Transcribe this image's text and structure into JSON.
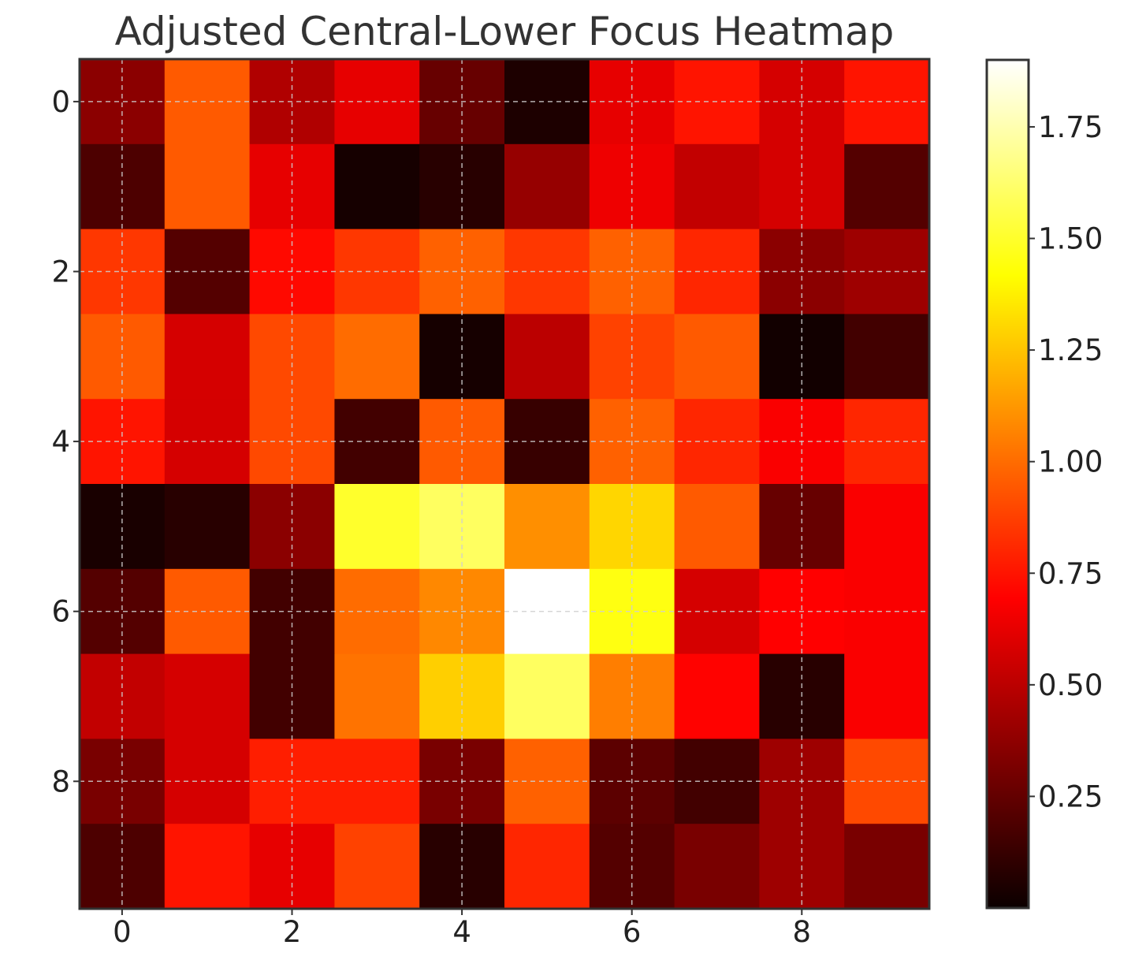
{
  "chart_data": {
    "type": "heatmap",
    "title": "Adjusted Central-Lower Focus Heatmap",
    "colormap": "hot",
    "rows": 10,
    "cols": 10,
    "x_ticks": [
      0,
      2,
      4,
      6,
      8
    ],
    "y_ticks": [
      0,
      2,
      4,
      6,
      8
    ],
    "grid": true,
    "colorbar": {
      "min": 0.0,
      "max": 1.9,
      "ticks": [
        0.25,
        0.5,
        0.75,
        1.0,
        1.25,
        1.5,
        1.75
      ],
      "tick_labels": [
        "0.25",
        "0.50",
        "0.75",
        "1.00",
        "1.25",
        "1.50",
        "1.75"
      ]
    },
    "values": [
      [
        0.35,
        0.95,
        0.45,
        0.6,
        0.25,
        0.05,
        0.6,
        0.75,
        0.55,
        0.75
      ],
      [
        0.18,
        0.95,
        0.6,
        0.03,
        0.08,
        0.38,
        0.62,
        0.5,
        0.55,
        0.2
      ],
      [
        0.85,
        0.2,
        0.72,
        0.85,
        0.97,
        0.85,
        0.97,
        0.8,
        0.35,
        0.4
      ],
      [
        0.95,
        0.55,
        0.9,
        1.0,
        0.03,
        0.48,
        0.88,
        0.95,
        0.02,
        0.15
      ],
      [
        0.75,
        0.55,
        0.9,
        0.15,
        0.95,
        0.12,
        0.97,
        0.8,
        0.65,
        0.8
      ],
      [
        0.04,
        0.08,
        0.35,
        1.5,
        1.6,
        1.1,
        1.3,
        0.95,
        0.25,
        0.65
      ],
      [
        0.2,
        0.95,
        0.15,
        1.0,
        1.08,
        1.9,
        1.45,
        0.55,
        0.68,
        0.65
      ],
      [
        0.5,
        0.55,
        0.15,
        1.02,
        1.28,
        1.6,
        1.05,
        0.7,
        0.08,
        0.65
      ],
      [
        0.3,
        0.55,
        0.78,
        0.78,
        0.3,
        0.97,
        0.22,
        0.15,
        0.4,
        0.9
      ],
      [
        0.18,
        0.75,
        0.6,
        0.88,
        0.08,
        0.8,
        0.2,
        0.3,
        0.4,
        0.3
      ]
    ]
  }
}
